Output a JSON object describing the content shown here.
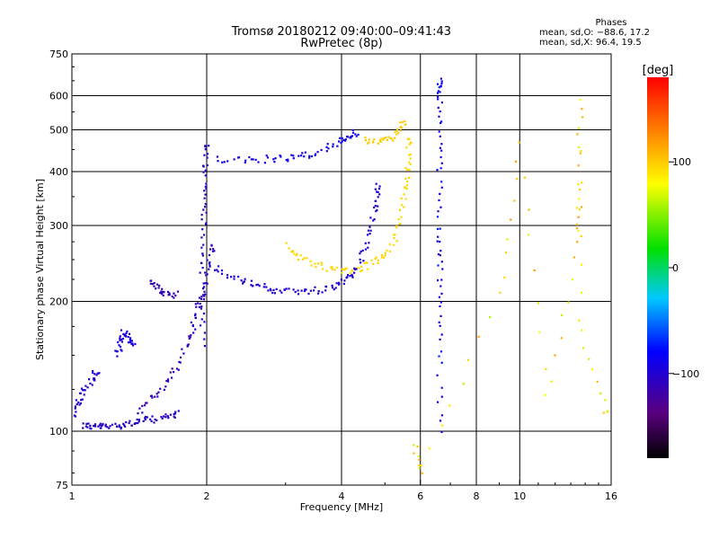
{
  "title": {
    "line1": "Tromsø 20180212 09:40:00–09:41:43",
    "line2": "RwPretec (8p)"
  },
  "phases_box": {
    "heading": "Phases",
    "o_line": "mean, sd,O: −88.6, 17.2",
    "x_line": "mean, sd,X:  96.4, 19.5"
  },
  "chart_data": {
    "type": "scatter",
    "xlabel": "Frequency [MHz]",
    "ylabel": "Stationary phase Virtual Height [km]",
    "x_scale": "log",
    "y_scale": "log",
    "xlim": [
      1,
      16
    ],
    "ylim": [
      75,
      750
    ],
    "x_ticks": [
      {
        "value": 1,
        "label": "1"
      },
      {
        "value": 2,
        "label": "2"
      },
      {
        "value": 4,
        "label": "4"
      },
      {
        "value": 6,
        "label": "6"
      },
      {
        "value": 8,
        "label": "8"
      },
      {
        "value": 10,
        "label": "10"
      },
      {
        "value": 16,
        "label": "16"
      }
    ],
    "y_ticks": [
      {
        "value": 75,
        "label": "75"
      },
      {
        "value": 100,
        "label": "100"
      },
      {
        "value": 200,
        "label": "200"
      },
      {
        "value": 300,
        "label": "300"
      },
      {
        "value": 400,
        "label": "400"
      },
      {
        "value": 500,
        "label": "500"
      },
      {
        "value": 600,
        "label": "600"
      },
      {
        "value": 750,
        "label": "750"
      }
    ],
    "grid": true,
    "colorbar": {
      "label": "[deg]",
      "min": -180,
      "max": 180,
      "ticks": [
        {
          "value": 100,
          "label": "100"
        },
        {
          "value": 0,
          "label": "0"
        },
        {
          "value": -100,
          "label": "−100"
        }
      ]
    },
    "segments": [
      {
        "name": "O-mode low E trace",
        "phase": -105,
        "spread": 4,
        "points": [
          [
            1.05,
            104
          ],
          [
            1.1,
            103
          ],
          [
            1.15,
            103
          ],
          [
            1.2,
            103
          ],
          [
            1.28,
            104
          ],
          [
            1.35,
            105
          ],
          [
            1.42,
            106
          ],
          [
            1.5,
            107
          ],
          [
            1.6,
            108
          ],
          [
            1.7,
            110
          ]
        ]
      },
      {
        "name": "O-mode low branch",
        "phase": -100,
        "spread": 6,
        "points": [
          [
            1.0,
            110
          ],
          [
            1.03,
            118
          ],
          [
            1.06,
            125
          ],
          [
            1.1,
            132
          ],
          [
            1.13,
            138
          ]
        ]
      },
      {
        "name": "Es cluster",
        "phase": -95,
        "spread": 10,
        "points": [
          [
            1.25,
            150
          ],
          [
            1.28,
            160
          ],
          [
            1.3,
            170
          ],
          [
            1.33,
            165
          ],
          [
            1.36,
            160
          ]
        ]
      },
      {
        "name": "Low-frequency rising trace",
        "phase": -110,
        "spread": 12,
        "points": [
          [
            1.4,
            112
          ],
          [
            1.5,
            120
          ],
          [
            1.6,
            128
          ],
          [
            1.7,
            140
          ],
          [
            1.8,
            160
          ],
          [
            1.85,
            175
          ],
          [
            1.9,
            195
          ],
          [
            1.95,
            210
          ],
          [
            2.0,
            240
          ],
          [
            2.05,
            270
          ]
        ]
      },
      {
        "name": "Steep F1 cusp",
        "phase": -105,
        "spread": 12,
        "points": [
          [
            1.95,
            160
          ],
          [
            1.95,
            200
          ],
          [
            1.95,
            250
          ],
          [
            1.96,
            300
          ],
          [
            1.97,
            350
          ],
          [
            1.98,
            400
          ],
          [
            1.99,
            460
          ]
        ]
      },
      {
        "name": "F1 small trace",
        "phase": -112,
        "spread": 5,
        "points": [
          [
            1.5,
            225
          ],
          [
            1.55,
            215
          ],
          [
            1.6,
            210
          ],
          [
            1.7,
            208
          ]
        ]
      },
      {
        "name": "O-mode F2 trace",
        "phase": -100,
        "spread": 6,
        "points": [
          [
            2.0,
            245
          ],
          [
            2.2,
            232
          ],
          [
            2.4,
            224
          ],
          [
            2.6,
            218
          ],
          [
            2.8,
            214
          ],
          [
            3.0,
            213
          ],
          [
            3.3,
            212
          ],
          [
            3.6,
            214
          ],
          [
            3.9,
            220
          ],
          [
            4.1,
            228
          ],
          [
            4.3,
            240
          ],
          [
            4.5,
            265
          ],
          [
            4.65,
            300
          ],
          [
            4.75,
            340
          ],
          [
            4.8,
            370
          ]
        ]
      },
      {
        "name": "O-mode F2 upper trace",
        "phase": -92,
        "spread": 5,
        "points": [
          [
            2.1,
            430
          ],
          [
            2.4,
            425
          ],
          [
            2.7,
            430
          ],
          [
            3.0,
            432
          ],
          [
            3.3,
            438
          ],
          [
            3.6,
            450
          ],
          [
            3.9,
            470
          ],
          [
            4.1,
            485
          ],
          [
            4.3,
            495
          ]
        ]
      },
      {
        "name": "X-mode F2 trace",
        "phase": 95,
        "spread": 6,
        "points": [
          [
            3.0,
            270
          ],
          [
            3.2,
            255
          ],
          [
            3.5,
            245
          ],
          [
            3.8,
            238
          ],
          [
            4.1,
            236
          ],
          [
            4.4,
            240
          ],
          [
            4.7,
            248
          ],
          [
            5.0,
            260
          ],
          [
            5.3,
            290
          ],
          [
            5.45,
            330
          ],
          [
            5.55,
            380
          ],
          [
            5.6,
            420
          ],
          [
            5.62,
            470
          ]
        ]
      },
      {
        "name": "X-mode upper trace",
        "phase": 100,
        "spread": 4,
        "points": [
          [
            4.5,
            480
          ],
          [
            4.8,
            470
          ],
          [
            5.1,
            480
          ],
          [
            5.3,
            500
          ],
          [
            5.5,
            520
          ]
        ]
      },
      {
        "name": "Interference column 6.6 MHz",
        "phase": -85,
        "spread": 30,
        "points": [
          [
            6.6,
            100
          ],
          [
            6.6,
            150
          ],
          [
            6.6,
            200
          ],
          [
            6.6,
            250
          ],
          [
            6.6,
            300
          ],
          [
            6.6,
            400
          ],
          [
            6.6,
            500
          ],
          [
            6.6,
            600
          ],
          [
            6.6,
            650
          ]
        ]
      },
      {
        "name": "Scattered points",
        "phase": 90,
        "spread": 60,
        "points": [
          [
            5.8,
            95
          ],
          [
            6.0,
            80
          ],
          [
            9.0,
            210
          ],
          [
            10.0,
            470
          ],
          [
            11.5,
            120
          ],
          [
            13.5,
            280
          ],
          [
            13.5,
            360
          ],
          [
            13.6,
            600
          ],
          [
            13.5,
            180
          ],
          [
            15.5,
            110
          ]
        ]
      }
    ]
  }
}
